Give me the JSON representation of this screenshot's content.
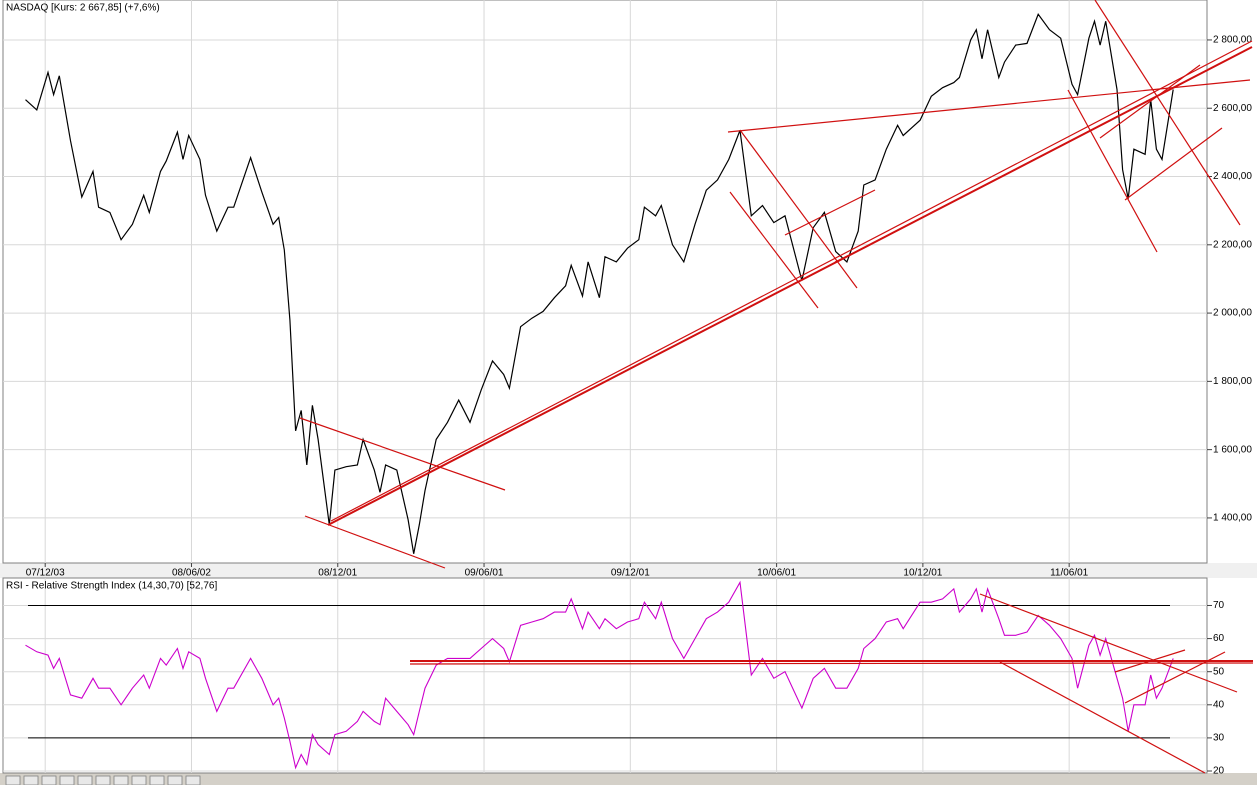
{
  "chart_data": [
    {
      "type": "line",
      "title": "NASDAQ [Kurs: 2 667,85] (+7,6%)",
      "color": "#000000",
      "grid": true,
      "xlim": [
        0,
        214
      ],
      "ylim": [
        1268,
        2917
      ],
      "xticks": [
        {
          "value": 7.5,
          "label": "07/12/03"
        },
        {
          "value": 33.5,
          "label": "08/06/02"
        },
        {
          "value": 59.5,
          "label": "08/12/01"
        },
        {
          "value": 85.5,
          "label": "09/06/01"
        },
        {
          "value": 111.5,
          "label": "09/12/01"
        },
        {
          "value": 137.5,
          "label": "10/06/01"
        },
        {
          "value": 163.5,
          "label": "10/12/01"
        },
        {
          "value": 189.5,
          "label": "11/06/01"
        }
      ],
      "yticks": [
        {
          "value": 1400,
          "label": "1 400,00"
        },
        {
          "value": 1600,
          "label": "1 600,00"
        },
        {
          "value": 1800,
          "label": "1 800,00"
        },
        {
          "value": 2000,
          "label": "2 000,00"
        },
        {
          "value": 2200,
          "label": "2 200,00"
        },
        {
          "value": 2400,
          "label": "2 400,00"
        },
        {
          "value": 2600,
          "label": "2 600,00"
        },
        {
          "value": 2800,
          "label": "2 800,00"
        }
      ],
      "x": [
        4,
        6,
        8,
        9,
        10,
        12,
        14,
        16,
        17,
        19,
        21,
        23,
        25,
        26,
        28,
        29,
        31,
        32,
        33,
        35,
        36,
        38,
        40,
        41,
        44,
        46,
        48,
        49,
        50,
        51,
        52,
        53,
        54,
        55,
        56,
        58,
        59,
        61,
        63,
        64,
        66,
        67,
        68,
        70,
        72,
        73,
        74,
        75,
        77,
        79,
        81,
        83,
        85,
        87,
        89,
        90,
        92,
        94,
        96,
        98,
        100,
        101,
        103,
        104,
        106,
        107,
        109,
        111,
        113,
        114,
        116,
        117,
        119,
        121,
        123,
        125,
        127,
        129,
        131,
        133,
        135,
        137,
        139,
        142,
        144,
        146,
        148,
        150,
        152,
        153,
        155,
        157,
        159,
        160,
        163,
        165,
        167,
        169,
        170,
        172,
        173,
        174,
        175,
        177,
        178,
        180,
        182,
        184,
        186,
        188,
        190,
        191,
        193,
        194,
        195,
        196,
        198,
        199,
        200,
        201,
        203,
        204,
        205,
        206,
        208
      ],
      "values": [
        2625,
        2595,
        2705,
        2640,
        2695,
        2505,
        2340,
        2415,
        2310,
        2295,
        2215,
        2260,
        2345,
        2295,
        2415,
        2445,
        2530,
        2450,
        2520,
        2450,
        2345,
        2240,
        2310,
        2310,
        2455,
        2355,
        2260,
        2280,
        2185,
        1980,
        1655,
        1715,
        1555,
        1730,
        1630,
        1380,
        1540,
        1550,
        1555,
        1630,
        1540,
        1475,
        1555,
        1540,
        1395,
        1295,
        1380,
        1480,
        1630,
        1680,
        1745,
        1680,
        1775,
        1860,
        1820,
        1780,
        1960,
        1985,
        2005,
        2045,
        2080,
        2140,
        2050,
        2150,
        2045,
        2165,
        2150,
        2190,
        2215,
        2310,
        2285,
        2315,
        2200,
        2150,
        2260,
        2360,
        2390,
        2450,
        2535,
        2285,
        2315,
        2265,
        2285,
        2095,
        2250,
        2295,
        2180,
        2150,
        2240,
        2375,
        2390,
        2480,
        2550,
        2520,
        2565,
        2635,
        2660,
        2675,
        2690,
        2800,
        2830,
        2745,
        2830,
        2690,
        2735,
        2785,
        2790,
        2875,
        2830,
        2805,
        2670,
        2640,
        2805,
        2855,
        2785,
        2855,
        2655,
        2420,
        2335,
        2480,
        2465,
        2625,
        2480,
        2450,
        2655
      ]
    },
    {
      "type": "line",
      "title": "RSI - Relative Strength Index (14,30,70) [52,76]",
      "color": "#cc00cc",
      "grid": true,
      "xlim": [
        0,
        214
      ],
      "ylim": [
        19.4,
        78.3
      ],
      "yticks": [
        20,
        30,
        40,
        50,
        60,
        70
      ],
      "hlines": [
        70,
        30
      ],
      "hline_color": "#000000",
      "x": [
        4,
        6,
        8,
        9,
        10,
        12,
        14,
        16,
        17,
        19,
        21,
        23,
        25,
        26,
        28,
        29,
        31,
        32,
        33,
        35,
        36,
        38,
        40,
        41,
        44,
        46,
        48,
        49,
        50,
        51,
        52,
        53,
        54,
        55,
        56,
        58,
        59,
        61,
        63,
        64,
        66,
        67,
        68,
        70,
        72,
        73,
        74,
        75,
        77,
        79,
        81,
        83,
        85,
        87,
        89,
        90,
        92,
        94,
        96,
        98,
        100,
        101,
        103,
        104,
        106,
        107,
        109,
        111,
        113,
        114,
        116,
        117,
        119,
        121,
        123,
        125,
        127,
        129,
        131,
        133,
        135,
        137,
        139,
        142,
        144,
        146,
        148,
        150,
        152,
        153,
        155,
        157,
        159,
        160,
        163,
        165,
        167,
        169,
        170,
        172,
        173,
        174,
        175,
        177,
        178,
        180,
        182,
        184,
        186,
        188,
        190,
        191,
        193,
        194,
        195,
        196,
        198,
        199,
        200,
        201,
        203,
        204,
        205,
        206,
        208
      ],
      "values": [
        58,
        56,
        55,
        51,
        54,
        43,
        42,
        48,
        45,
        45,
        40,
        45,
        49,
        45,
        54,
        52,
        57,
        51,
        56,
        54,
        48,
        38,
        45,
        45,
        54,
        48,
        40,
        42,
        36,
        29,
        21,
        25,
        22,
        31,
        28,
        25,
        31,
        32,
        35,
        38,
        35,
        34,
        42,
        38,
        34,
        31,
        38,
        45,
        52,
        54,
        54,
        54,
        57,
        60,
        57,
        53,
        64,
        65,
        66,
        68,
        68,
        72,
        63,
        68,
        63,
        66,
        63,
        65,
        66,
        71,
        66,
        71,
        60,
        54,
        60,
        66,
        68,
        71,
        77,
        49,
        54,
        48,
        50,
        39,
        48,
        51,
        45,
        45,
        51,
        57,
        60,
        65,
        66,
        63,
        71,
        71,
        72,
        75,
        68,
        72,
        75,
        68,
        75,
        66,
        61,
        61,
        62,
        67,
        64,
        60,
        54,
        45,
        58,
        61,
        55,
        60,
        48,
        42,
        32,
        40,
        40,
        49,
        42,
        45,
        54
      ]
    }
  ]
}
